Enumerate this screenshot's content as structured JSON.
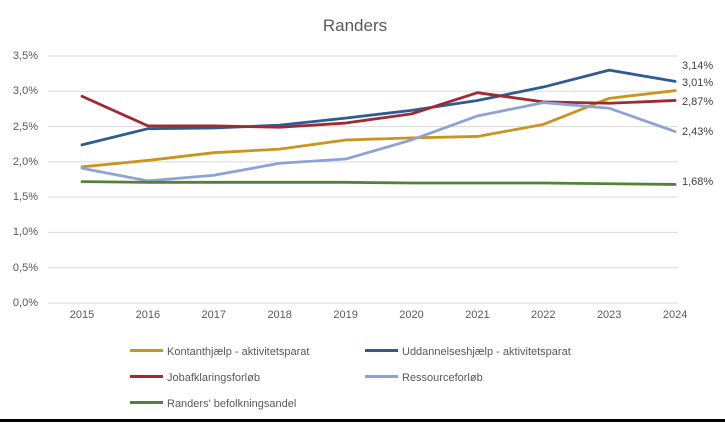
{
  "page": {
    "background": "#ffffff",
    "bottom_rule_color": "#000000"
  },
  "chart_data": {
    "type": "line",
    "title": "Randers",
    "title_color": "#595959",
    "xlabel": "",
    "ylabel": "",
    "x": [
      "2015",
      "2016",
      "2017",
      "2018",
      "2019",
      "2020",
      "2021",
      "2022",
      "2023",
      "2024"
    ],
    "ylim": [
      0,
      3.5
    ],
    "yticks": [
      "3,5%",
      "3,0%",
      "2,5%",
      "2,0%",
      "1,5%",
      "1,0%",
      "0,5%",
      "0,0%"
    ],
    "grid": true,
    "gridline_color": "#d9d9d9",
    "axis_label_color": "#595959",
    "legend_position": "bottom",
    "series": [
      {
        "key": "kontanthjaelp",
        "name": "Kontanthjælp - aktivitetsparat",
        "color": "#c9951c",
        "values": [
          1.93,
          2.02,
          2.13,
          2.18,
          2.31,
          2.34,
          2.36,
          2.53,
          2.9,
          3.01
        ]
      },
      {
        "key": "uddannelseshjaelp",
        "name": "Uddannelseshjælp - aktivitetsparat",
        "color": "#2f5b95",
        "values": [
          2.24,
          2.47,
          2.48,
          2.52,
          2.62,
          2.73,
          2.87,
          3.06,
          3.3,
          3.14
        ]
      },
      {
        "key": "jobafklaringsforloeb",
        "name": "Jobafklaringsforløb",
        "color": "#9e2b34",
        "values": [
          2.93,
          2.51,
          2.51,
          2.49,
          2.55,
          2.68,
          2.98,
          2.85,
          2.83,
          2.87
        ]
      },
      {
        "key": "ressourceforloeb",
        "name": "Ressourceforløb",
        "color": "#8ea3d4",
        "values": [
          1.91,
          1.73,
          1.81,
          1.98,
          2.04,
          2.31,
          2.65,
          2.84,
          2.76,
          2.43
        ]
      },
      {
        "key": "befolkningsandel",
        "name": "Randers' befolkningsandel",
        "color": "#538135",
        "values": [
          1.72,
          1.71,
          1.71,
          1.71,
          1.71,
          1.7,
          1.7,
          1.7,
          1.69,
          1.68
        ]
      }
    ],
    "end_labels": [
      {
        "text": "3,14%",
        "series": "uddannelseshjaelp"
      },
      {
        "text": "3,01%",
        "series": "kontanthjaelp"
      },
      {
        "text": "2,87%",
        "series": "jobafklaringsforloeb"
      },
      {
        "text": "2,43%",
        "series": "ressourceforloeb"
      },
      {
        "text": "1,68%",
        "series": "befolkningsandel"
      }
    ],
    "end_label_color": "#404040"
  }
}
